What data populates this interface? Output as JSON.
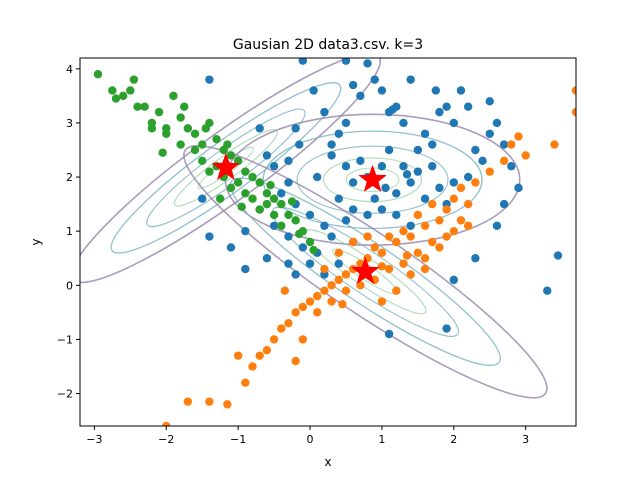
{
  "chart_data": {
    "type": "scatter",
    "title": "Gausian 2D data3.csv. k=3",
    "xlabel": "x",
    "ylabel": "y",
    "xlim": [
      -3.2,
      3.7
    ],
    "ylim": [
      -2.6,
      4.2
    ],
    "xticks": [
      -3,
      -2,
      -1,
      0,
      1,
      2,
      3
    ],
    "yticks": [
      -2,
      -1,
      0,
      1,
      2,
      3,
      4
    ],
    "grid": false,
    "legend": "none",
    "colors": {
      "cluster_blue": "#1f77b4",
      "cluster_orange": "#ff7f0e",
      "cluster_green": "#2ca02c",
      "center_star": "#ff0000",
      "contour_outer": "#9a8bb0",
      "contour_mid": "#7fb5c4",
      "contour_inner": "#9fd6a8"
    },
    "centers": [
      {
        "x": -1.17,
        "y": 2.17
      },
      {
        "x": 0.87,
        "y": 1.95
      },
      {
        "x": 0.77,
        "y": 0.25
      }
    ],
    "series": [
      {
        "color": "#1f77b4",
        "points": [
          [
            -1.4,
            3.8
          ],
          [
            -0.7,
            2.9
          ],
          [
            -0.6,
            2.4
          ],
          [
            -0.3,
            2.3
          ],
          [
            -0.2,
            2.9
          ],
          [
            -0.15,
            2.6
          ],
          [
            0.1,
            2.0
          ],
          [
            0.3,
            2.6
          ],
          [
            0.4,
            2.8
          ],
          [
            0.5,
            3.0
          ],
          [
            0.6,
            3.7
          ],
          [
            0.7,
            3.5
          ],
          [
            0.8,
            4.1
          ],
          [
            0.9,
            3.8
          ],
          [
            1.0,
            3.6
          ],
          [
            1.1,
            3.2
          ],
          [
            1.2,
            3.3
          ],
          [
            1.3,
            3.0
          ],
          [
            1.4,
            3.8
          ],
          [
            1.5,
            2.5
          ],
          [
            1.6,
            2.8
          ],
          [
            1.7,
            2.6
          ],
          [
            1.8,
            3.2
          ],
          [
            1.9,
            3.3
          ],
          [
            2.0,
            3.0
          ],
          [
            2.1,
            3.6
          ],
          [
            2.2,
            3.3
          ],
          [
            2.3,
            2.5
          ],
          [
            2.4,
            2.3
          ],
          [
            2.5,
            3.4
          ],
          [
            2.6,
            3.0
          ],
          [
            0.3,
            2.4
          ],
          [
            0.5,
            2.2
          ],
          [
            0.6,
            1.9
          ],
          [
            0.7,
            2.3
          ],
          [
            0.8,
            2.0
          ],
          [
            0.9,
            1.6
          ],
          [
            1.0,
            2.2
          ],
          [
            1.1,
            2.5
          ],
          [
            1.2,
            1.7
          ],
          [
            1.3,
            2.2
          ],
          [
            1.4,
            1.9
          ],
          [
            1.5,
            2.1
          ],
          [
            1.7,
            2.2
          ],
          [
            1.8,
            1.8
          ],
          [
            1.9,
            1.5
          ],
          [
            2.0,
            1.9
          ],
          [
            2.2,
            2.0
          ],
          [
            0.4,
            1.6
          ],
          [
            0.6,
            1.4
          ],
          [
            0.8,
            1.3
          ],
          [
            1.0,
            1.4
          ],
          [
            1.2,
            1.3
          ],
          [
            1.4,
            1.1
          ],
          [
            1.6,
            1.6
          ],
          [
            0.5,
            1.2
          ],
          [
            0.3,
            0.9
          ],
          [
            0.6,
            0.8
          ],
          [
            0.1,
            0.6
          ],
          [
            -0.1,
            0.7
          ],
          [
            -0.3,
            0.9
          ],
          [
            -0.5,
            1.1
          ],
          [
            -0.7,
            1.4
          ],
          [
            -0.9,
            1.0
          ],
          [
            -1.1,
            0.7
          ],
          [
            -1.4,
            0.9
          ],
          [
            -1.5,
            1.6
          ],
          [
            -0.9,
            0.3
          ],
          [
            -0.6,
            0.5
          ],
          [
            -0.3,
            0.4
          ],
          [
            0.0,
            0.4
          ],
          [
            0.2,
            0.2
          ],
          [
            0.4,
            0.4
          ],
          [
            -0.2,
            0.2
          ],
          [
            -0.4,
            1.7
          ],
          [
            -0.2,
            1.5
          ],
          [
            0.0,
            1.3
          ],
          [
            0.2,
            1.1
          ],
          [
            1.1,
            -0.9
          ],
          [
            1.9,
            -0.8
          ],
          [
            2.0,
            0.1
          ],
          [
            2.3,
            0.5
          ],
          [
            2.6,
            1.1
          ],
          [
            2.7,
            1.5
          ],
          [
            2.9,
            1.8
          ],
          [
            2.8,
            2.2
          ],
          [
            2.7,
            2.6
          ],
          [
            2.5,
            2.8
          ],
          [
            3.3,
            -0.1
          ],
          [
            3.45,
            0.55
          ],
          [
            -0.3,
            1.9
          ],
          [
            -0.5,
            2.2
          ],
          [
            0.2,
            3.2
          ],
          [
            0.05,
            3.6
          ],
          [
            -0.1,
            4.15
          ],
          [
            0.5,
            4.15
          ],
          [
            1.15,
            3.25
          ],
          [
            1.75,
            3.6
          ],
          [
            1.35,
            2.05
          ],
          [
            1.05,
            1.8
          ]
        ]
      },
      {
        "color": "#ff7f0e",
        "points": [
          [
            3.7,
            3.6
          ],
          [
            3.7,
            3.2
          ],
          [
            3.0,
            2.4
          ],
          [
            2.9,
            2.75
          ],
          [
            2.8,
            2.6
          ],
          [
            2.7,
            2.3
          ],
          [
            2.5,
            2.1
          ],
          [
            2.3,
            1.9
          ],
          [
            2.1,
            1.8
          ],
          [
            2.0,
            1.6
          ],
          [
            1.9,
            1.4
          ],
          [
            1.8,
            1.2
          ],
          [
            1.7,
            1.5
          ],
          [
            1.6,
            1.1
          ],
          [
            1.5,
            1.3
          ],
          [
            1.4,
            0.9
          ],
          [
            1.3,
            1.0
          ],
          [
            1.2,
            0.8
          ],
          [
            1.1,
            0.9
          ],
          [
            1.0,
            0.6
          ],
          [
            0.9,
            0.7
          ],
          [
            0.8,
            0.5
          ],
          [
            0.7,
            0.4
          ],
          [
            0.6,
            0.3
          ],
          [
            0.5,
            0.2
          ],
          [
            0.4,
            0.1
          ],
          [
            0.3,
            0.0
          ],
          [
            0.2,
            -0.1
          ],
          [
            0.1,
            -0.2
          ],
          [
            0.0,
            -0.3
          ],
          [
            -0.1,
            -0.4
          ],
          [
            -0.2,
            -0.5
          ],
          [
            -0.3,
            -0.7
          ],
          [
            -0.4,
            -0.8
          ],
          [
            -0.5,
            -1.0
          ],
          [
            -0.6,
            -1.2
          ],
          [
            -0.7,
            -1.3
          ],
          [
            -0.8,
            -1.5
          ],
          [
            -0.9,
            -1.8
          ],
          [
            -1.0,
            -1.3
          ],
          [
            -0.2,
            -1.4
          ],
          [
            -0.1,
            -1.0
          ],
          [
            0.1,
            -0.5
          ],
          [
            0.3,
            -0.3
          ],
          [
            0.5,
            -0.1
          ],
          [
            0.7,
            0.0
          ],
          [
            0.9,
            0.1
          ],
          [
            1.1,
            0.3
          ],
          [
            1.3,
            0.4
          ],
          [
            1.5,
            0.6
          ],
          [
            1.7,
            0.8
          ],
          [
            1.9,
            0.9
          ],
          [
            2.1,
            1.2
          ],
          [
            1.0,
            -0.3
          ],
          [
            1.2,
            -0.1
          ],
          [
            1.4,
            0.2
          ],
          [
            1.6,
            0.5
          ],
          [
            1.8,
            0.7
          ],
          [
            2.0,
            1.0
          ],
          [
            2.2,
            1.1
          ],
          [
            0.6,
            0.8
          ],
          [
            0.8,
            0.9
          ],
          [
            0.4,
            0.6
          ],
          [
            0.2,
            0.3
          ],
          [
            -1.7,
            -2.15
          ],
          [
            -1.4,
            -2.15
          ],
          [
            -1.15,
            -2.2
          ],
          [
            -2.0,
            -2.6
          ],
          [
            3.4,
            2.6
          ],
          [
            2.2,
            1.5
          ],
          [
            1.6,
            0.3
          ],
          [
            1.35,
            0.55
          ],
          [
            1.0,
            0.35
          ],
          [
            0.45,
            -0.35
          ],
          [
            -0.35,
            -0.1
          ]
        ]
      },
      {
        "color": "#2ca02c",
        "points": [
          [
            -3.25,
            4.1
          ],
          [
            -2.95,
            3.9
          ],
          [
            -2.75,
            3.6
          ],
          [
            -2.6,
            3.5
          ],
          [
            -2.5,
            3.6
          ],
          [
            -2.4,
            3.3
          ],
          [
            -2.3,
            3.3
          ],
          [
            -2.2,
            3.0
          ],
          [
            -2.1,
            3.2
          ],
          [
            -2.0,
            2.9
          ],
          [
            -1.9,
            3.5
          ],
          [
            -1.8,
            3.1
          ],
          [
            -1.7,
            2.9
          ],
          [
            -1.6,
            2.8
          ],
          [
            -1.5,
            2.6
          ],
          [
            -1.4,
            3.0
          ],
          [
            -1.3,
            2.7
          ],
          [
            -1.2,
            2.5
          ],
          [
            -1.1,
            2.4
          ],
          [
            -1.0,
            2.3
          ],
          [
            -0.9,
            2.1
          ],
          [
            -0.8,
            2.0
          ],
          [
            -0.7,
            1.9
          ],
          [
            -0.6,
            1.7
          ],
          [
            -0.5,
            1.6
          ],
          [
            -0.4,
            1.5
          ],
          [
            -0.3,
            1.3
          ],
          [
            -0.2,
            1.2
          ],
          [
            -0.1,
            1.0
          ],
          [
            0.0,
            0.8
          ],
          [
            0.05,
            0.65
          ],
          [
            -1.5,
            2.3
          ],
          [
            -1.4,
            2.1
          ],
          [
            -1.3,
            2.2
          ],
          [
            -1.2,
            2.0
          ],
          [
            -1.1,
            1.8
          ],
          [
            -1.0,
            1.9
          ],
          [
            -0.9,
            1.7
          ],
          [
            -0.8,
            1.6
          ],
          [
            -0.7,
            1.4
          ],
          [
            -0.6,
            1.5
          ],
          [
            -0.5,
            1.3
          ],
          [
            -0.4,
            1.1
          ],
          [
            -1.6,
            2.5
          ],
          [
            -1.8,
            2.6
          ],
          [
            -2.0,
            2.8
          ],
          [
            -2.2,
            2.9
          ],
          [
            -2.7,
            3.45
          ],
          [
            -2.45,
            3.8
          ],
          [
            -1.75,
            3.3
          ],
          [
            -1.45,
            2.9
          ],
          [
            -1.15,
            2.6
          ],
          [
            -0.55,
            1.85
          ],
          [
            -0.25,
            1.55
          ],
          [
            -0.15,
            0.95
          ],
          [
            -2.05,
            2.45
          ],
          [
            -1.25,
            1.6
          ],
          [
            -0.95,
            1.45
          ]
        ]
      }
    ]
  }
}
